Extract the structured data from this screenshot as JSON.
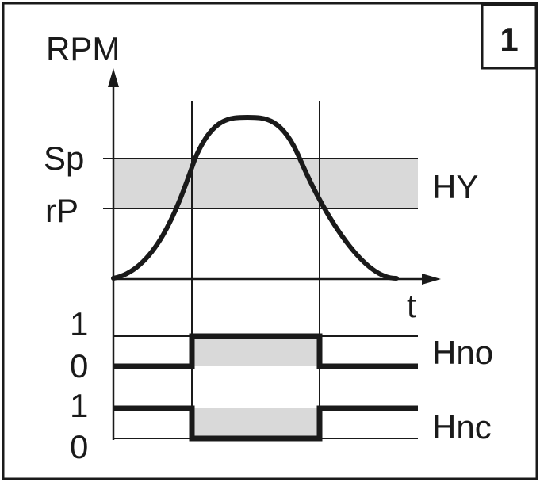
{
  "figure_number": "1",
  "axes": {
    "y_label": "RPM",
    "x_label": "t"
  },
  "thresholds": {
    "switch_point": "Sp",
    "reset_point": "rP",
    "hysteresis": "HY"
  },
  "outputs": [
    {
      "name": "Hno",
      "high_label": "1",
      "low_label": "0"
    },
    {
      "name": "Hnc",
      "high_label": "1",
      "low_label": "0"
    }
  ],
  "colors": {
    "ink": "#1a1a1a",
    "band_fill": "#d9d9d9"
  }
}
